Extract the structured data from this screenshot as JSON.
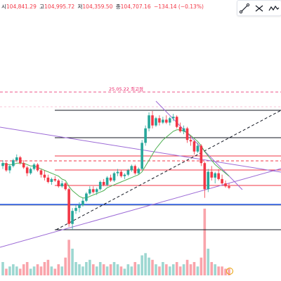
{
  "ohlc": {
    "open_label": "시",
    "open": "104,841.29",
    "high_label": "고",
    "high": "104,995.72",
    "low_label": "저",
    "low": "104,359.50",
    "close_label": "종",
    "close": "104,707.16",
    "change": "−134.14 (−0.13%)"
  },
  "toolbar": {
    "icons": [
      "trend-line-icon",
      "fib-icon",
      "path-icon"
    ]
  },
  "annotation": {
    "ath_label": "25.05.22 최고점"
  },
  "colors": {
    "up": "#26a69a",
    "down": "#f23645",
    "up_alt": "#089981",
    "ma": "#4caf50",
    "purple": "#9c6ad6",
    "blue_line": "#2962ff",
    "red_level": "#f23645",
    "ath": "#e91e63",
    "vol_up": "#26a69a",
    "vol_down": "#f23645"
  },
  "chart_data": {
    "type": "candlestick",
    "note_scale": "price (relative units; no y-axis ticks visible in crop)",
    "candles": [
      [
        62,
        66,
        60,
        64
      ],
      [
        64,
        65,
        58,
        59
      ],
      [
        59,
        63,
        57,
        62
      ],
      [
        62,
        67,
        61,
        66
      ],
      [
        66,
        70,
        65,
        68
      ],
      [
        68,
        69,
        63,
        64
      ],
      [
        64,
        66,
        60,
        61
      ],
      [
        61,
        62,
        55,
        57
      ],
      [
        57,
        61,
        56,
        60
      ],
      [
        60,
        64,
        59,
        63
      ],
      [
        63,
        64,
        58,
        59
      ],
      [
        59,
        60,
        54,
        56
      ],
      [
        56,
        59,
        52,
        54
      ],
      [
        54,
        56,
        50,
        51
      ],
      [
        51,
        54,
        49,
        53
      ],
      [
        53,
        55,
        51,
        52
      ],
      [
        52,
        53,
        47,
        48
      ],
      [
        48,
        52,
        47,
        50
      ],
      [
        50,
        51,
        45,
        46
      ],
      [
        46,
        47,
        20,
        22
      ],
      [
        22,
        33,
        18,
        31
      ],
      [
        31,
        35,
        29,
        33
      ],
      [
        33,
        37,
        30,
        35
      ],
      [
        35,
        40,
        34,
        38
      ],
      [
        38,
        44,
        37,
        43
      ],
      [
        43,
        48,
        42,
        46
      ],
      [
        46,
        48,
        43,
        44
      ],
      [
        44,
        47,
        42,
        46
      ],
      [
        46,
        52,
        45,
        51
      ],
      [
        51,
        53,
        48,
        49
      ],
      [
        49,
        55,
        48,
        54
      ],
      [
        54,
        56,
        51,
        52
      ],
      [
        52,
        58,
        51,
        57
      ],
      [
        57,
        60,
        55,
        58
      ],
      [
        58,
        59,
        54,
        55
      ],
      [
        55,
        57,
        53,
        56
      ],
      [
        56,
        60,
        55,
        59
      ],
      [
        59,
        63,
        58,
        62
      ],
      [
        62,
        63,
        56,
        57
      ],
      [
        57,
        61,
        56,
        60
      ],
      [
        60,
        80,
        59,
        78
      ],
      [
        78,
        90,
        76,
        88
      ],
      [
        88,
        99,
        86,
        97
      ],
      [
        97,
        100,
        88,
        90
      ],
      [
        90,
        96,
        89,
        95
      ],
      [
        95,
        97,
        90,
        92
      ],
      [
        92,
        96,
        91,
        94
      ],
      [
        94,
        97,
        91,
        92
      ],
      [
        92,
        96,
        90,
        95
      ],
      [
        95,
        98,
        93,
        96
      ],
      [
        96,
        97,
        88,
        89
      ],
      [
        89,
        92,
        85,
        86
      ],
      [
        86,
        90,
        84,
        88
      ],
      [
        88,
        89,
        78,
        80
      ],
      [
        80,
        83,
        76,
        79
      ],
      [
        79,
        80,
        70,
        72
      ],
      [
        72,
        78,
        71,
        76
      ],
      [
        76,
        77,
        62,
        64
      ],
      [
        64,
        65,
        40,
        46
      ],
      [
        46,
        60,
        44,
        58
      ],
      [
        58,
        62,
        52,
        54
      ],
      [
        54,
        58,
        50,
        57
      ],
      [
        57,
        60,
        52,
        53
      ],
      [
        53,
        56,
        49,
        50
      ],
      [
        50,
        52,
        47,
        48
      ],
      [
        48,
        50,
        46,
        47
      ]
    ],
    "volume": [
      6,
      3,
      4,
      5,
      4,
      3,
      5,
      6,
      3,
      4,
      5,
      4,
      6,
      7,
      4,
      3,
      5,
      4,
      8,
      16,
      12,
      6,
      5,
      4,
      6,
      7,
      5,
      4,
      6,
      5,
      4,
      5,
      6,
      5,
      4,
      3,
      5,
      4,
      6,
      5,
      9,
      10,
      8,
      7,
      5,
      4,
      6,
      5,
      4,
      5,
      6,
      4,
      5,
      7,
      5,
      6,
      4,
      8,
      30,
      12,
      6,
      5,
      4,
      4,
      3,
      3
    ],
    "moving_average": [
      64,
      63,
      63,
      63,
      64,
      64,
      64,
      63,
      62,
      62,
      61,
      60,
      59,
      58,
      57,
      56,
      55,
      53,
      52,
      48,
      45,
      43,
      41,
      40,
      40,
      41,
      42,
      43,
      44,
      45,
      47,
      48,
      49,
      50,
      51,
      52,
      53,
      54,
      55,
      56,
      58,
      62,
      66,
      70,
      74,
      77,
      80,
      82,
      84,
      86,
      87,
      87,
      86,
      85,
      83,
      81,
      79,
      76,
      72,
      69,
      66,
      63,
      61,
      59,
      57,
      55
    ]
  }
}
